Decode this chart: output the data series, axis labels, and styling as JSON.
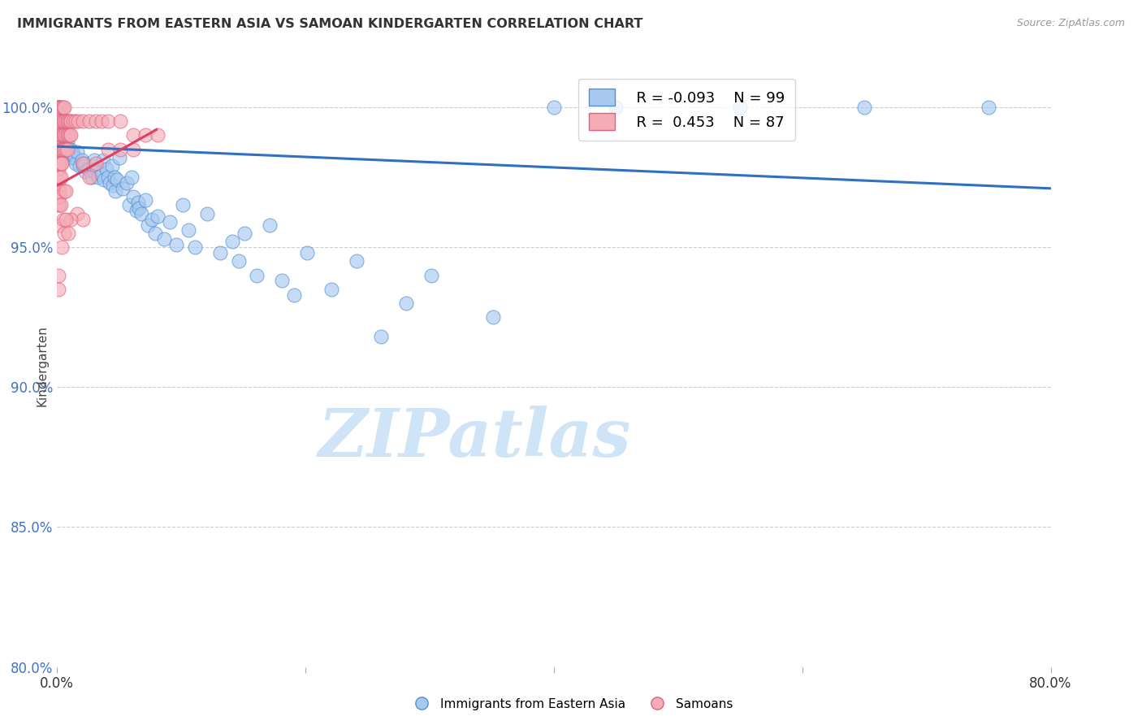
{
  "title": "IMMIGRANTS FROM EASTERN ASIA VS SAMOAN KINDERGARTEN CORRELATION CHART",
  "source": "Source: ZipAtlas.com",
  "ylabel": "Kindergarten",
  "x_range": [
    0.0,
    80.0
  ],
  "y_range": [
    80.0,
    101.5
  ],
  "legend_blue_R": "-0.093",
  "legend_blue_N": "99",
  "legend_pink_R": "0.453",
  "legend_pink_N": "87",
  "blue_color": "#A8C8F0",
  "pink_color": "#F4ACB7",
  "blue_edge_color": "#5090D0",
  "pink_edge_color": "#E06080",
  "blue_line_color": "#3070C0",
  "pink_line_color": "#E04060",
  "watermark_color": "#D0E4F8",
  "blue_scatter": [
    [
      0.1,
      99.1
    ],
    [
      0.1,
      98.8
    ],
    [
      0.1,
      99.3
    ],
    [
      0.1,
      98.5
    ],
    [
      0.1,
      98.9
    ],
    [
      0.2,
      99.0
    ],
    [
      0.2,
      98.7
    ],
    [
      0.2,
      98.4
    ],
    [
      0.2,
      98.6
    ],
    [
      0.2,
      99.2
    ],
    [
      0.3,
      98.9
    ],
    [
      0.3,
      98.5
    ],
    [
      0.3,
      99.1
    ],
    [
      0.3,
      98.3
    ],
    [
      0.4,
      98.7
    ],
    [
      0.4,
      98.9
    ],
    [
      0.4,
      98.2
    ],
    [
      0.4,
      98.6
    ],
    [
      0.5,
      98.5
    ],
    [
      0.5,
      99.0
    ],
    [
      0.6,
      98.4
    ],
    [
      0.6,
      98.8
    ],
    [
      0.7,
      98.2
    ],
    [
      0.7,
      98.6
    ],
    [
      0.8,
      98.8
    ],
    [
      0.8,
      98.4
    ],
    [
      0.9,
      98.3
    ],
    [
      1.0,
      98.5
    ],
    [
      1.0,
      98.2
    ],
    [
      1.1,
      98.5
    ],
    [
      1.2,
      98.4
    ],
    [
      1.3,
      98.3
    ],
    [
      1.4,
      98.2
    ],
    [
      1.5,
      98.0
    ],
    [
      1.6,
      98.4
    ],
    [
      1.8,
      97.9
    ],
    [
      2.0,
      98.1
    ],
    [
      2.1,
      97.9
    ],
    [
      2.2,
      98.0
    ],
    [
      2.3,
      97.7
    ],
    [
      2.5,
      97.8
    ],
    [
      2.8,
      97.5
    ],
    [
      2.9,
      97.9
    ],
    [
      3.0,
      98.1
    ],
    [
      3.0,
      97.7
    ],
    [
      3.2,
      97.8
    ],
    [
      3.3,
      97.5
    ],
    [
      3.6,
      97.6
    ],
    [
      3.7,
      98.1
    ],
    [
      3.8,
      97.4
    ],
    [
      4.0,
      97.8
    ],
    [
      4.1,
      97.5
    ],
    [
      4.2,
      97.3
    ],
    [
      4.4,
      97.9
    ],
    [
      4.5,
      97.2
    ],
    [
      4.6,
      97.5
    ],
    [
      4.7,
      97.0
    ],
    [
      4.8,
      97.4
    ],
    [
      5.0,
      98.2
    ],
    [
      5.3,
      97.1
    ],
    [
      5.6,
      97.3
    ],
    [
      5.8,
      96.5
    ],
    [
      6.0,
      97.5
    ],
    [
      6.1,
      96.8
    ],
    [
      6.4,
      96.3
    ],
    [
      6.5,
      96.6
    ],
    [
      6.6,
      96.4
    ],
    [
      6.8,
      96.2
    ],
    [
      7.1,
      96.7
    ],
    [
      7.3,
      95.8
    ],
    [
      7.6,
      96.0
    ],
    [
      7.9,
      95.5
    ],
    [
      8.1,
      96.1
    ],
    [
      8.6,
      95.3
    ],
    [
      9.1,
      95.9
    ],
    [
      9.6,
      95.1
    ],
    [
      10.1,
      96.5
    ],
    [
      10.6,
      95.6
    ],
    [
      11.1,
      95.0
    ],
    [
      12.1,
      96.2
    ],
    [
      13.1,
      94.8
    ],
    [
      14.1,
      95.2
    ],
    [
      14.6,
      94.5
    ],
    [
      15.1,
      95.5
    ],
    [
      16.1,
      94.0
    ],
    [
      17.1,
      95.8
    ],
    [
      18.1,
      93.8
    ],
    [
      19.1,
      93.3
    ],
    [
      20.1,
      94.8
    ],
    [
      22.1,
      93.5
    ],
    [
      24.1,
      94.5
    ],
    [
      26.1,
      91.8
    ],
    [
      28.1,
      93.0
    ],
    [
      30.1,
      94.0
    ],
    [
      35.1,
      92.5
    ],
    [
      40.0,
      100.0
    ],
    [
      45.0,
      100.0
    ],
    [
      55.0,
      100.0
    ],
    [
      65.0,
      100.0
    ],
    [
      75.0,
      100.0
    ]
  ],
  "pink_scatter": [
    [
      0.1,
      100.0
    ],
    [
      0.1,
      100.0
    ],
    [
      0.1,
      100.0
    ],
    [
      0.1,
      100.0
    ],
    [
      0.1,
      100.0
    ],
    [
      0.1,
      99.8
    ],
    [
      0.1,
      99.7
    ],
    [
      0.1,
      99.5
    ],
    [
      0.1,
      99.2
    ],
    [
      0.1,
      98.9
    ],
    [
      0.1,
      98.6
    ],
    [
      0.1,
      98.0
    ],
    [
      0.1,
      97.8
    ],
    [
      0.1,
      97.2
    ],
    [
      0.1,
      96.5
    ],
    [
      0.2,
      100.0
    ],
    [
      0.2,
      99.7
    ],
    [
      0.2,
      99.0
    ],
    [
      0.2,
      98.5
    ],
    [
      0.2,
      98.0
    ],
    [
      0.2,
      97.5
    ],
    [
      0.2,
      97.0
    ],
    [
      0.2,
      96.5
    ],
    [
      0.2,
      95.8
    ],
    [
      0.3,
      100.0
    ],
    [
      0.3,
      99.5
    ],
    [
      0.3,
      99.0
    ],
    [
      0.3,
      98.5
    ],
    [
      0.3,
      98.0
    ],
    [
      0.3,
      97.5
    ],
    [
      0.4,
      100.0
    ],
    [
      0.4,
      99.5
    ],
    [
      0.4,
      99.0
    ],
    [
      0.4,
      98.5
    ],
    [
      0.4,
      98.0
    ],
    [
      0.5,
      100.0
    ],
    [
      0.5,
      99.5
    ],
    [
      0.5,
      99.0
    ],
    [
      0.5,
      98.5
    ],
    [
      0.6,
      100.0
    ],
    [
      0.6,
      99.5
    ],
    [
      0.6,
      99.0
    ],
    [
      0.6,
      98.5
    ],
    [
      0.7,
      99.5
    ],
    [
      0.7,
      99.0
    ],
    [
      0.7,
      98.5
    ],
    [
      0.8,
      99.5
    ],
    [
      0.8,
      99.0
    ],
    [
      0.8,
      98.5
    ],
    [
      0.9,
      99.5
    ],
    [
      0.9,
      99.0
    ],
    [
      1.0,
      99.5
    ],
    [
      1.0,
      99.0
    ],
    [
      1.1,
      99.5
    ],
    [
      1.1,
      99.0
    ],
    [
      1.3,
      99.5
    ],
    [
      1.5,
      99.5
    ],
    [
      1.7,
      99.5
    ],
    [
      2.1,
      99.5
    ],
    [
      2.6,
      99.5
    ],
    [
      2.6,
      97.5
    ],
    [
      3.1,
      99.5
    ],
    [
      3.6,
      99.5
    ],
    [
      1.6,
      96.2
    ],
    [
      2.1,
      96.0
    ],
    [
      0.1,
      94.0
    ],
    [
      0.1,
      93.5
    ],
    [
      4.1,
      99.5
    ],
    [
      5.1,
      99.5
    ],
    [
      0.4,
      95.0
    ],
    [
      0.6,
      95.5
    ],
    [
      0.9,
      95.5
    ],
    [
      1.1,
      96.0
    ],
    [
      2.1,
      98.0
    ],
    [
      3.1,
      98.0
    ],
    [
      0.2,
      96.8
    ],
    [
      0.3,
      96.5
    ],
    [
      4.1,
      98.5
    ],
    [
      5.1,
      98.5
    ],
    [
      6.1,
      99.0
    ],
    [
      0.6,
      97.0
    ],
    [
      0.7,
      97.0
    ],
    [
      6.1,
      98.5
    ],
    [
      7.1,
      99.0
    ],
    [
      8.1,
      99.0
    ],
    [
      0.5,
      96.0
    ],
    [
      0.7,
      96.0
    ]
  ],
  "blue_trendline": [
    [
      0.0,
      98.6
    ],
    [
      80.0,
      97.1
    ]
  ],
  "pink_trendline": [
    [
      0.0,
      97.2
    ],
    [
      8.0,
      99.2
    ]
  ],
  "x_ticks": [
    0,
    20,
    40,
    60,
    80
  ],
  "x_tick_labels": [
    "0.0%",
    "",
    "",
    "",
    "80.0%"
  ],
  "y_ticks": [
    80.0,
    85.0,
    90.0,
    95.0,
    100.0
  ],
  "y_tick_labels": [
    "80.0%",
    "85.0%",
    "90.0%",
    "95.0%",
    "100.0%"
  ]
}
